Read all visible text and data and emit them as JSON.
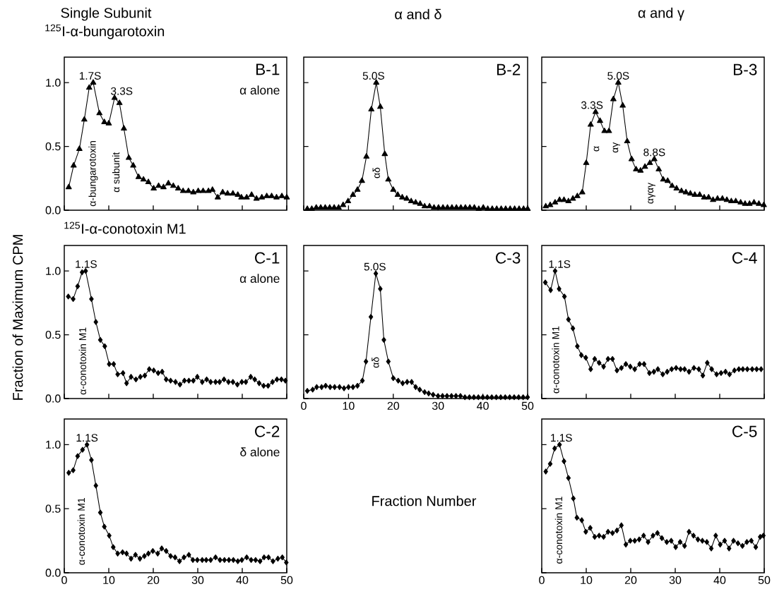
{
  "chart_data": [
    {
      "type": "line",
      "title": "Single Subunit",
      "subtitle": "$^{125}$I-α-bungarotoxin",
      "marker": "triangle",
      "tick_labels": "y",
      "xlim": [
        0,
        50
      ],
      "ylim": [
        0,
        1.2
      ],
      "xticks": [
        0,
        10,
        20,
        30,
        40,
        50
      ],
      "yticks": [
        {
          "value": 0,
          "label": "0.0"
        },
        {
          "value": 0.5,
          "label": "0.5"
        },
        {
          "value": 1.0,
          "label": "1.0"
        }
      ],
      "x": [
        1.0,
        2.1,
        3.4,
        4.5,
        5.6,
        6.5,
        7.9,
        9.0,
        10.0,
        11.3,
        12.4,
        13.4,
        14.5,
        15.5,
        16.7,
        17.8,
        18.9,
        20.1,
        21.2,
        22.3,
        23.4,
        24.5,
        25.6,
        26.7,
        27.9,
        29.0,
        30.1,
        31.2,
        32.4,
        33.3,
        34.5,
        35.6,
        36.7,
        37.9,
        39.0,
        39.8,
        41.0,
        42.1,
        43.2,
        44.4,
        45.5,
        46.6,
        47.7,
        48.9,
        50.0
      ],
      "series": [
        {
          "color": "#000000",
          "values": [
            0.18,
            0.35,
            0.48,
            0.71,
            0.96,
            1.0,
            0.76,
            0.69,
            0.68,
            0.88,
            0.84,
            0.64,
            0.41,
            0.35,
            0.26,
            0.24,
            0.22,
            0.17,
            0.19,
            0.18,
            0.21,
            0.19,
            0.17,
            0.15,
            0.15,
            0.14,
            0.15,
            0.15,
            0.15,
            0.16,
            0.1,
            0.14,
            0.13,
            0.13,
            0.12,
            0.1,
            0.1,
            0.12,
            0.09,
            0.1,
            0.11,
            0.11,
            0.1,
            0.11,
            0.1
          ]
        }
      ],
      "annotations": [
        "B-1",
        "α alone",
        {
          "text": "1.7S",
          "x": 5.8,
          "y": 1.0
        },
        {
          "text": "3.3S",
          "x": 12.9,
          "y": 0.88
        },
        "α-bungarotoxin",
        "α subunit"
      ]
    },
    {
      "type": "line",
      "title": "α and δ",
      "marker": "triangle",
      "tick_labels": false,
      "xlim": [
        0,
        50
      ],
      "ylim": [
        0,
        1.2
      ],
      "xticks": [
        0,
        10,
        20,
        30,
        40,
        50
      ],
      "yticks": [
        0,
        0.5,
        1.0
      ],
      "x": [
        0.8,
        1.8,
        2.8,
        3.8,
        4.8,
        5.8,
        6.8,
        7.8,
        8.8,
        9.9,
        11.0,
        12.0,
        13.0,
        14.0,
        15.1,
        16.2,
        17.1,
        18.1,
        18.9,
        20.0,
        21.0,
        22.0,
        23.0,
        24.0,
        25.0,
        26.0,
        27.0,
        28.1,
        29.1,
        30.1,
        31.1,
        32.1,
        33.1,
        34.1,
        35.1,
        36.1,
        37.1,
        38.1,
        39.1,
        40.1,
        41.1,
        42.1,
        43.1,
        44.1,
        45.1,
        46.1,
        47.1,
        48.1,
        49.1,
        50.0
      ],
      "series": [
        {
          "color": "#000000",
          "values": [
            0.01,
            0.01,
            0.02,
            0.02,
            0.02,
            0.02,
            0.02,
            0.02,
            0.04,
            0.07,
            0.12,
            0.16,
            0.23,
            0.42,
            0.79,
            1.0,
            0.81,
            0.44,
            0.24,
            0.16,
            0.12,
            0.1,
            0.09,
            0.07,
            0.06,
            0.05,
            0.03,
            0.03,
            0.02,
            0.02,
            0.02,
            0.02,
            0.02,
            0.02,
            0.02,
            0.02,
            0.02,
            0.02,
            0.01,
            0.02,
            0.01,
            0.01,
            0.01,
            0.01,
            0.01,
            0.01,
            0.01,
            0.01,
            0.01,
            0.01
          ]
        }
      ],
      "annotations": [
        "B-2",
        {
          "text": "5.0S",
          "x": 15.6,
          "y": 1.0
        },
        "αδ"
      ]
    },
    {
      "type": "line",
      "title": "α and γ",
      "marker": "triangle",
      "tick_labels": false,
      "xlim": [
        0,
        50
      ],
      "ylim": [
        0,
        1.2
      ],
      "xticks": [
        0,
        10,
        20,
        30,
        40,
        50
      ],
      "yticks": [
        0,
        0.5,
        1.0
      ],
      "x": [
        0.9,
        1.9,
        3.0,
        4.0,
        5.0,
        6.0,
        7.0,
        8.0,
        9.1,
        10.0,
        11.0,
        12.1,
        13.1,
        14.1,
        15.1,
        16.1,
        17.2,
        18.2,
        19.2,
        20.2,
        21.2,
        22.2,
        23.2,
        24.3,
        25.3,
        26.3,
        27.3,
        28.3,
        29.3,
        30.3,
        31.4,
        32.4,
        33.4,
        34.4,
        35.5,
        36.5,
        37.5,
        38.5,
        39.5,
        40.6,
        41.6,
        42.6,
        43.6,
        44.7,
        45.7,
        46.7,
        47.7,
        48.8,
        49.9
      ],
      "series": [
        {
          "color": "#000000",
          "values": [
            0.03,
            0.04,
            0.06,
            0.08,
            0.08,
            0.07,
            0.09,
            0.11,
            0.14,
            0.37,
            0.67,
            0.77,
            0.7,
            0.62,
            0.62,
            0.87,
            1.0,
            0.82,
            0.54,
            0.4,
            0.32,
            0.31,
            0.34,
            0.37,
            0.4,
            0.32,
            0.24,
            0.23,
            0.19,
            0.17,
            0.15,
            0.14,
            0.13,
            0.12,
            0.12,
            0.1,
            0.1,
            0.08,
            0.09,
            0.09,
            0.08,
            0.07,
            0.07,
            0.06,
            0.05,
            0.05,
            0.06,
            0.05,
            0.04
          ]
        }
      ],
      "annotations": [
        "B-3",
        {
          "text": "3.3S",
          "x": 11.3,
          "y": 0.77
        },
        {
          "text": "5.0S",
          "x": 17.2,
          "y": 1.0
        },
        {
          "text": "8.8S",
          "x": 25.3,
          "y": 0.4
        },
        "α",
        "αγ",
        "αγαγ"
      ]
    },
    {
      "type": "line",
      "subtitle": "$^{125}$I-α-conotoxin M1",
      "ylabel": "Fraction of Maximum CPM",
      "marker": "diamond",
      "tick_labels": "y",
      "xlim": [
        0,
        50
      ],
      "ylim": [
        0,
        1.2
      ],
      "xticks": [
        0,
        10,
        20,
        30,
        40,
        50
      ],
      "yticks": [
        {
          "value": 0,
          "label": "0.0"
        },
        {
          "value": 0.5,
          "label": "0.5"
        },
        {
          "value": 1.0,
          "label": "1.0"
        }
      ],
      "x": [
        0.9,
        2.0,
        3.0,
        4.0,
        4.8,
        6.1,
        7.1,
        8.1,
        9.1,
        10.1,
        11.1,
        12.0,
        13.2,
        14.0,
        15.0,
        16.1,
        17.1,
        18.1,
        19.1,
        20.1,
        21.1,
        22.0,
        22.9,
        23.9,
        25.0,
        26.0,
        27.0,
        28.0,
        29.0,
        29.9,
        31.0,
        32.0,
        32.9,
        34.0,
        34.9,
        35.9,
        36.9,
        37.9,
        38.9,
        39.9,
        40.8,
        41.9,
        42.8,
        43.8,
        44.8,
        45.8,
        46.8,
        47.8,
        48.8,
        49.7
      ],
      "series": [
        {
          "color": "#000000",
          "values": [
            0.8,
            0.78,
            0.88,
            0.99,
            1.0,
            0.78,
            0.6,
            0.46,
            0.41,
            0.27,
            0.27,
            0.19,
            0.2,
            0.12,
            0.17,
            0.15,
            0.17,
            0.18,
            0.23,
            0.22,
            0.2,
            0.21,
            0.15,
            0.14,
            0.13,
            0.11,
            0.14,
            0.14,
            0.14,
            0.17,
            0.13,
            0.15,
            0.13,
            0.13,
            0.13,
            0.15,
            0.13,
            0.13,
            0.11,
            0.13,
            0.13,
            0.17,
            0.15,
            0.12,
            0.1,
            0.1,
            0.13,
            0.15,
            0.15,
            0.14
          ]
        }
      ],
      "annotations": [
        "C-1",
        "α alone",
        {
          "text": "1.1S",
          "x": 4.9,
          "y": 1.0
        },
        "α-conotoxin M1"
      ]
    },
    {
      "type": "line",
      "xlabel": "Fraction Number",
      "marker": "diamond",
      "tick_labels": "x",
      "xlim": [
        0,
        50
      ],
      "ylim": [
        0,
        1.2
      ],
      "xticks": [
        0,
        10,
        20,
        30,
        40,
        50
      ],
      "yticks": [
        0,
        0.5,
        1.0
      ],
      "x": [
        0.8,
        2.0,
        2.9,
        4.0,
        4.9,
        5.9,
        6.9,
        8.0,
        9.0,
        10.0,
        11.0,
        12.0,
        13.1,
        13.9,
        15.0,
        16.1,
        17.1,
        17.9,
        18.9,
        20.0,
        21.1,
        22.1,
        23.1,
        24.1,
        25.0,
        25.9,
        27.0,
        27.9,
        28.9,
        30.0,
        31.0,
        32.0,
        33.0,
        34.0,
        35.0,
        36.0,
        37.0,
        38.0,
        39.0,
        40.0,
        41.0,
        42.0,
        43.0,
        44.0,
        45.0,
        46.0,
        47.0,
        48.0,
        49.0,
        50.0
      ],
      "series": [
        {
          "color": "#000000",
          "values": [
            0.06,
            0.07,
            0.09,
            0.09,
            0.1,
            0.09,
            0.09,
            0.09,
            0.08,
            0.09,
            0.09,
            0.1,
            0.14,
            0.29,
            0.64,
            0.98,
            0.86,
            0.46,
            0.29,
            0.16,
            0.14,
            0.12,
            0.13,
            0.13,
            0.09,
            0.07,
            0.05,
            0.04,
            0.03,
            0.02,
            0.02,
            0.02,
            0.02,
            0.02,
            0.02,
            0.01,
            0.01,
            0.01,
            0.01,
            0.01,
            0.01,
            0.01,
            0.01,
            0.01,
            0.01,
            0.01,
            0.01,
            0.01,
            0.01,
            0.01
          ]
        }
      ],
      "annotations": [
        "C-3",
        {
          "text": "5.0S",
          "x": 15.9,
          "y": 0.98
        },
        "αδ"
      ]
    },
    {
      "type": "line",
      "marker": "diamond",
      "tick_labels": false,
      "xlim": [
        0,
        50
      ],
      "ylim": [
        0,
        1.2
      ],
      "xticks": [
        0,
        10,
        20,
        30,
        40,
        50
      ],
      "yticks": [
        0,
        0.5,
        1.0
      ],
      "x": [
        0.8,
        2.0,
        3.0,
        3.9,
        5.1,
        6.0,
        7.0,
        8.0,
        8.9,
        9.9,
        11.0,
        11.9,
        12.9,
        13.9,
        14.9,
        15.9,
        16.9,
        17.9,
        18.9,
        19.9,
        20.9,
        22.0,
        23.0,
        24.2,
        25.2,
        26.1,
        27.2,
        28.2,
        29.2,
        30.2,
        31.2,
        32.1,
        33.1,
        34.2,
        35.3,
        36.2,
        37.2,
        38.2,
        39.3,
        40.3,
        41.3,
        42.2,
        43.3,
        44.3,
        45.2,
        46.2,
        47.3,
        48.3,
        49.3
      ],
      "series": [
        {
          "color": "#000000",
          "values": [
            0.91,
            0.85,
            1.0,
            0.86,
            0.8,
            0.62,
            0.55,
            0.41,
            0.34,
            0.32,
            0.23,
            0.31,
            0.28,
            0.25,
            0.31,
            0.31,
            0.22,
            0.24,
            0.27,
            0.25,
            0.23,
            0.27,
            0.27,
            0.2,
            0.21,
            0.23,
            0.19,
            0.21,
            0.23,
            0.24,
            0.23,
            0.23,
            0.21,
            0.24,
            0.23,
            0.18,
            0.28,
            0.23,
            0.19,
            0.2,
            0.21,
            0.19,
            0.22,
            0.23,
            0.23,
            0.23,
            0.23,
            0.23,
            0.23
          ]
        }
      ],
      "annotations": [
        "C-4",
        {
          "text": "1.1S",
          "x": 4.0,
          "y": 1.0
        },
        "α-conotoxin M1"
      ]
    },
    {
      "type": "line",
      "marker": "diamond",
      "xlim": [
        0,
        50
      ],
      "ylim": [
        0,
        1.2
      ],
      "xticks": [
        0,
        10,
        20,
        30,
        40,
        50
      ],
      "yticks": [
        {
          "value": 0,
          "label": "0.0"
        },
        {
          "value": 0.5,
          "label": "0.5"
        },
        {
          "value": 1.0,
          "label": "1.0"
        }
      ],
      "x": [
        1.0,
        2.0,
        3.0,
        4.1,
        5.1,
        6.1,
        7.1,
        8.1,
        9.0,
        10.1,
        11.0,
        12.0,
        13.1,
        14.0,
        15.0,
        16.0,
        17.0,
        18.0,
        18.9,
        19.9,
        21.0,
        21.9,
        22.9,
        23.9,
        24.9,
        25.9,
        26.9,
        28.0,
        28.9,
        29.9,
        31.0,
        31.9,
        32.9,
        34.0,
        35.0,
        36.0,
        37.0,
        38.0,
        39.0,
        39.9,
        41.0,
        42.0,
        43.0,
        44.0,
        44.9,
        45.9,
        46.9,
        48.0,
        49.0,
        49.9
      ],
      "series": [
        {
          "color": "#000000",
          "values": [
            0.78,
            0.8,
            0.91,
            0.96,
            1.0,
            0.88,
            0.68,
            0.47,
            0.36,
            0.29,
            0.2,
            0.15,
            0.16,
            0.15,
            0.11,
            0.14,
            0.11,
            0.13,
            0.15,
            0.17,
            0.15,
            0.19,
            0.17,
            0.13,
            0.12,
            0.09,
            0.12,
            0.14,
            0.1,
            0.1,
            0.1,
            0.1,
            0.1,
            0.12,
            0.1,
            0.1,
            0.1,
            0.1,
            0.09,
            0.1,
            0.12,
            0.1,
            0.1,
            0.09,
            0.12,
            0.12,
            0.09,
            0.11,
            0.12,
            0.08
          ]
        }
      ],
      "annotations": [
        "C-2",
        "δ alone",
        {
          "text": "1.1S",
          "x": 5.1,
          "y": 1.0
        },
        "α-conotoxin M1"
      ]
    },
    {
      "type": "line",
      "marker": "diamond",
      "tick_labels": "x",
      "xlim": [
        0,
        50
      ],
      "ylim": [
        0,
        1.2
      ],
      "xticks": [
        0,
        10,
        20,
        30,
        40,
        50
      ],
      "yticks": [
        0,
        0.5,
        1.0
      ],
      "x": [
        0.9,
        1.9,
        2.9,
        4.0,
        5.0,
        6.0,
        7.1,
        7.9,
        9.0,
        9.9,
        10.9,
        11.9,
        12.9,
        13.9,
        14.9,
        15.9,
        16.9,
        17.9,
        18.9,
        19.9,
        20.9,
        21.9,
        22.9,
        23.9,
        25.0,
        26.0,
        27.0,
        28.1,
        29.1,
        30.1,
        31.1,
        32.1,
        33.1,
        34.1,
        35.1,
        36.1,
        37.1,
        38.1,
        39.1,
        40.1,
        41.1,
        42.1,
        43.1,
        44.1,
        45.1,
        46.1,
        47.1,
        48.1,
        49.1,
        49.8
      ],
      "series": [
        {
          "color": "#000000",
          "values": [
            0.79,
            0.85,
            0.97,
            1.0,
            0.87,
            0.74,
            0.58,
            0.43,
            0.41,
            0.32,
            0.35,
            0.28,
            0.29,
            0.28,
            0.32,
            0.31,
            0.33,
            0.37,
            0.22,
            0.25,
            0.25,
            0.26,
            0.29,
            0.24,
            0.29,
            0.31,
            0.27,
            0.24,
            0.25,
            0.2,
            0.24,
            0.21,
            0.32,
            0.29,
            0.26,
            0.25,
            0.24,
            0.19,
            0.29,
            0.22,
            0.25,
            0.19,
            0.25,
            0.23,
            0.21,
            0.24,
            0.25,
            0.2,
            0.28,
            0.29
          ]
        }
      ],
      "annotations": [
        "C-5",
        {
          "text": "1.1S",
          "x": 4.4,
          "y": 1.0
        },
        "α-conotoxin M1"
      ]
    }
  ]
}
